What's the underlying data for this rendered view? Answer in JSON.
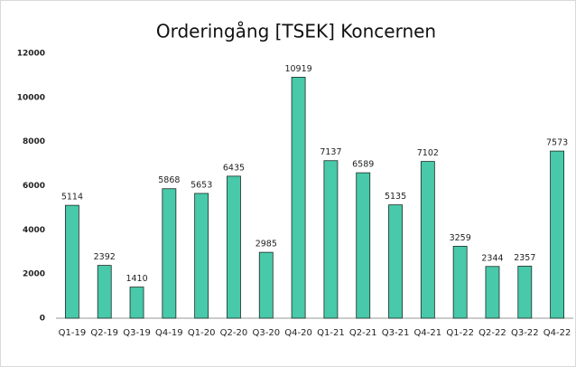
{
  "chart_data": {
    "type": "bar",
    "title": "Orderingång [TSEK] Koncernen",
    "categories": [
      "Q1-19",
      "Q2-19",
      "Q3-19",
      "Q4-19",
      "Q1-20",
      "Q2-20",
      "Q3-20",
      "Q4-20",
      "Q1-21",
      "Q2-21",
      "Q3-21",
      "Q4-21",
      "Q1-22",
      "Q2-22",
      "Q3-22",
      "Q4-22"
    ],
    "values": [
      5114,
      2392,
      1410,
      5868,
      5653,
      6435,
      2985,
      10919,
      7137,
      6589,
      5135,
      7102,
      3259,
      2344,
      2357,
      7573
    ],
    "color": "#48c9a9",
    "ylim": [
      0,
      12000
    ],
    "yticks": [
      0,
      2000,
      4000,
      6000,
      8000,
      10000,
      12000
    ],
    "grid": false
  }
}
